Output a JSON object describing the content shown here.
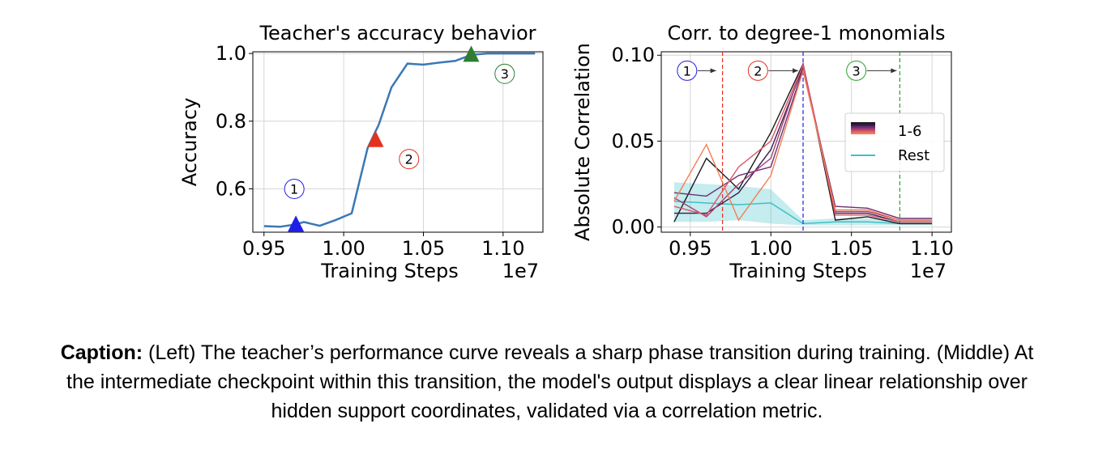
{
  "chart_data": [
    {
      "type": "line",
      "title": "Teacher's accuracy behavior",
      "xlabel": "Training Steps",
      "x_offset_label": "1e7",
      "ylabel": "Accuracy",
      "xlim": [
        0.943,
        1.125
      ],
      "ylim": [
        0.472,
        1.005
      ],
      "xticks": [
        0.95,
        1.0,
        1.05,
        1.1
      ],
      "xtick_labels": [
        "0.95",
        "1.00",
        "1.05",
        "1.10"
      ],
      "yticks": [
        0.6,
        0.8,
        1.0
      ],
      "ytick_labels": [
        "0.6",
        "0.8",
        "1.0"
      ],
      "grid": true,
      "series": [
        {
          "color": "#3a78b5",
          "x": [
            0.95,
            0.96,
            0.97,
            0.975,
            0.985,
            0.995,
            1.005,
            1.015,
            1.022,
            1.03,
            1.04,
            1.05,
            1.06,
            1.07,
            1.08,
            1.09,
            1.1,
            1.11,
            1.12
          ],
          "y": [
            0.49,
            0.488,
            0.495,
            0.502,
            0.491,
            0.508,
            0.528,
            0.72,
            0.79,
            0.9,
            0.97,
            0.967,
            0.973,
            0.978,
            0.996,
            1.0,
            1.0,
            1.0,
            1.0
          ]
        }
      ],
      "markers": [
        {
          "x": 0.97,
          "y": 0.495,
          "color": "#1f1fe6",
          "shape": "triangle"
        },
        {
          "x": 1.02,
          "y": 0.745,
          "color": "#e6301f",
          "shape": "triangle"
        },
        {
          "x": 1.08,
          "y": 0.997,
          "color": "#2e7d32",
          "shape": "triangle"
        }
      ],
      "annotations": [
        {
          "text": "1",
          "x": 0.969,
          "y": 0.6,
          "color": "#1f1fe6"
        },
        {
          "text": "2",
          "x": 1.041,
          "y": 0.688,
          "color": "#e6301f"
        },
        {
          "text": "3",
          "x": 1.101,
          "y": 0.94,
          "color": "#2e7d32"
        }
      ]
    },
    {
      "type": "line",
      "title": "Corr. to degree-1 monomials",
      "xlabel": "Training Steps",
      "x_offset_label": "1e7",
      "ylabel": "Absolute Correlation",
      "xlim": [
        0.932,
        1.112
      ],
      "ylim": [
        -0.003,
        0.102
      ],
      "xticks": [
        0.95,
        1.0,
        1.05,
        1.1
      ],
      "xtick_labels": [
        "0.95",
        "1.00",
        "1.05",
        "1.10"
      ],
      "yticks": [
        0.0,
        0.05,
        0.1
      ],
      "ytick_labels": [
        "0.00",
        "0.05",
        "0.10"
      ],
      "grid": true,
      "legend": {
        "placement": "center-right",
        "entries": [
          {
            "label": "1-6",
            "kind": "gradient"
          },
          {
            "label": "Rest",
            "kind": "band",
            "color": "#40bfc8"
          }
        ]
      },
      "x": [
        0.94,
        0.96,
        0.98,
        1.0,
        1.02,
        1.04,
        1.06,
        1.08,
        1.1
      ],
      "series": [
        {
          "name": "1-6",
          "color": "#1a1a1a",
          "values": [
            0.003,
            0.04,
            0.022,
            0.055,
            0.095,
            0.004,
            0.006,
            0.002,
            0.002
          ]
        },
        {
          "name": "1-6",
          "color": "#3b1f4f",
          "values": [
            0.008,
            0.008,
            0.02,
            0.045,
            0.093,
            0.008,
            0.008,
            0.003,
            0.003
          ]
        },
        {
          "name": "1-6",
          "color": "#6c2f73",
          "values": [
            0.02,
            0.018,
            0.03,
            0.035,
            0.092,
            0.012,
            0.011,
            0.005,
            0.005
          ]
        },
        {
          "name": "1-6",
          "color": "#a83f78",
          "values": [
            0.017,
            0.006,
            0.025,
            0.04,
            0.095,
            0.009,
            0.009,
            0.004,
            0.004
          ]
        },
        {
          "name": "1-6",
          "color": "#d9566b",
          "values": [
            0.012,
            0.007,
            0.035,
            0.05,
            0.094,
            0.007,
            0.007,
            0.003,
            0.003
          ]
        },
        {
          "name": "1-6",
          "color": "#f47d52",
          "values": [
            0.015,
            0.048,
            0.004,
            0.03,
            0.091,
            0.01,
            0.01,
            0.004,
            0.004
          ]
        }
      ],
      "rest": {
        "name": "Rest",
        "color": "#40bfc8",
        "mean": [
          0.015,
          0.014,
          0.013,
          0.014,
          0.002,
          0.003,
          0.003,
          0.002,
          0.002
        ],
        "upper": [
          0.026,
          0.025,
          0.024,
          0.022,
          0.004,
          0.005,
          0.005,
          0.004,
          0.004
        ],
        "lower": [
          0.003,
          0.003,
          0.004,
          0.002,
          0.001,
          0.001,
          0.001,
          0.001,
          0.001
        ]
      },
      "vlines": [
        {
          "x": 0.97,
          "color": "#e6301f",
          "style": "dashed"
        },
        {
          "x": 1.02,
          "color": "#1f1fe6",
          "style": "dashed"
        },
        {
          "x": 1.08,
          "color": "#2e9e2e",
          "style": "dashed"
        }
      ],
      "annotations": [
        {
          "text": "1",
          "x": 0.948,
          "y": 0.091,
          "color": "#1f1fe6",
          "arrow_to": 0.966
        },
        {
          "text": "2",
          "x": 0.992,
          "y": 0.091,
          "color": "#e6301f",
          "arrow_to": 1.017
        },
        {
          "text": "3",
          "x": 1.053,
          "y": 0.091,
          "color": "#2e9e2e",
          "arrow_to": 1.078
        }
      ]
    }
  ],
  "caption": {
    "bold": "Caption:",
    "text": " (Left) The teacher’s performance curve reveals a sharp phase transition during training. (Middle) At the intermediate checkpoint within this transition, the model's output displays a clear linear relationship over hidden support coordinates, validated via a correlation metric."
  }
}
